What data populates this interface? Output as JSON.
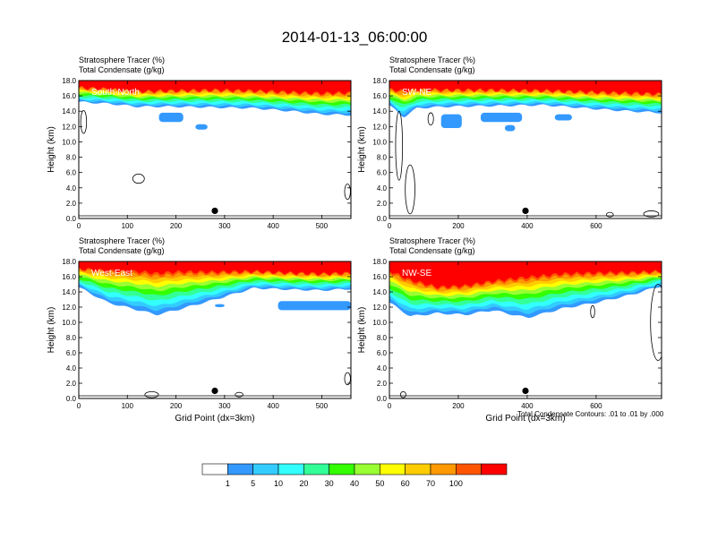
{
  "figure": {
    "title": "2014-01-13_06:00:00",
    "footnote": "Total Condensate Contours: .01 to .01 by .000"
  },
  "colorbar": {
    "colors": [
      "#ffffff",
      "#3399ff",
      "#33ccff",
      "#33ffff",
      "#33ff99",
      "#33ff00",
      "#99ff33",
      "#ffff00",
      "#ffcc00",
      "#ff9900",
      "#ff5500",
      "#ff0000"
    ],
    "labels": [
      "1",
      "5",
      "10",
      "20",
      "30",
      "40",
      "50",
      "60",
      "70",
      "100"
    ]
  },
  "chart_data": [
    {
      "type": "heatmap",
      "panel": "top-left",
      "header_line1": "Stratosphere Tracer   (%)",
      "header_line2": "Total Condensate   (g/kg)",
      "label": "South-North",
      "ylabel": "Height (km)",
      "xlabel": "",
      "xlim": [
        0,
        560
      ],
      "ylim": [
        0,
        18
      ],
      "xticks": [
        0,
        100,
        200,
        300,
        400,
        500
      ],
      "yticks": [
        "0.0",
        "2.0",
        "4.0",
        "6.0",
        "8.0",
        "10.0",
        "12.0",
        "14.0",
        "16.0",
        "18.0"
      ],
      "marker": {
        "x": 280,
        "y": 1.0
      },
      "tracer_bands": {
        "x": [
          0,
          60,
          120,
          200,
          280,
          360,
          440,
          500,
          560
        ],
        "z100": [
          17.2,
          17.0,
          16.7,
          16.8,
          16.9,
          16.8,
          16.6,
          16.5,
          16.6
        ],
        "z1": [
          15.2,
          15.0,
          14.6,
          14.6,
          14.5,
          14.4,
          14.0,
          13.6,
          13.5
        ]
      },
      "patches": [
        {
          "x0": 165,
          "x1": 215,
          "z0": 12.6,
          "z1": 13.8
        },
        {
          "x0": 240,
          "x1": 265,
          "z0": 11.6,
          "z1": 12.3
        }
      ],
      "contours": [
        {
          "cx": 123,
          "cy": 5.2,
          "rx": 12,
          "ry": 0.6
        },
        {
          "cx": 10,
          "cy": 12.6,
          "rx": 6,
          "ry": 1.5
        },
        {
          "cx": 553,
          "cy": 3.5,
          "rx": 6,
          "ry": 1.0
        }
      ]
    },
    {
      "type": "heatmap",
      "panel": "top-right",
      "header_line1": "Stratosphere Tracer   (%)",
      "header_line2": "Total Condensate   (g/kg)",
      "label": "SW-NE",
      "ylabel": "Height (km)",
      "xlabel": "",
      "xlim": [
        0,
        790
      ],
      "ylim": [
        0,
        18
      ],
      "xticks": [
        0,
        200,
        400,
        600
      ],
      "yticks": [
        "0.0",
        "2.0",
        "4.0",
        "6.0",
        "8.0",
        "10.0",
        "12.0",
        "14.0",
        "16.0",
        "18.0"
      ],
      "marker": {
        "x": 395,
        "y": 1.0
      },
      "tracer_bands": {
        "x": [
          0,
          40,
          80,
          160,
          300,
          450,
          600,
          700,
          790
        ],
        "z100": [
          17.0,
          16.8,
          17.0,
          16.9,
          16.9,
          16.8,
          16.6,
          16.5,
          16.4
        ],
        "z1": [
          14.8,
          13.2,
          14.4,
          14.6,
          14.7,
          14.8,
          14.3,
          14.0,
          13.8
        ]
      },
      "patches": [
        {
          "x0": 150,
          "x1": 210,
          "z0": 11.8,
          "z1": 13.6
        },
        {
          "x0": 265,
          "x1": 385,
          "z0": 12.6,
          "z1": 13.8
        },
        {
          "x0": 335,
          "x1": 365,
          "z0": 11.4,
          "z1": 12.2
        },
        {
          "x0": 480,
          "x1": 530,
          "z0": 12.8,
          "z1": 13.6
        }
      ],
      "contours": [
        {
          "cx": 60,
          "cy": 3.8,
          "rx": 14,
          "ry": 3.2
        },
        {
          "cx": 28,
          "cy": 9.5,
          "rx": 10,
          "ry": 4.5
        },
        {
          "cx": 120,
          "cy": 13.0,
          "rx": 8,
          "ry": 0.8
        },
        {
          "cx": 760,
          "cy": 0.6,
          "rx": 22,
          "ry": 0.4
        },
        {
          "cx": 640,
          "cy": 0.5,
          "rx": 10,
          "ry": 0.3
        }
      ]
    },
    {
      "type": "heatmap",
      "panel": "bottom-left",
      "header_line1": "Stratosphere Tracer   (%)",
      "header_line2": "Total Condensate   (g/kg)",
      "label": "West-East",
      "ylabel": "Height (km)",
      "xlabel": "Grid Point (dx=3km)",
      "xlim": [
        0,
        560
      ],
      "ylim": [
        0,
        18
      ],
      "xticks": [
        0,
        100,
        200,
        300,
        400,
        500
      ],
      "yticks": [
        "0.0",
        "2.0",
        "4.0",
        "6.0",
        "8.0",
        "10.0",
        "12.0",
        "14.0",
        "16.0",
        "18.0"
      ],
      "marker": {
        "x": 280,
        "y": 1.0
      },
      "tracer_bands": {
        "x": [
          0,
          60,
          130,
          160,
          200,
          280,
          360,
          440,
          500,
          560
        ],
        "z100": [
          17.2,
          17.0,
          16.9,
          16.7,
          16.9,
          16.8,
          16.8,
          16.6,
          16.5,
          16.6
        ],
        "z1": [
          14.6,
          12.6,
          11.5,
          11.0,
          11.6,
          13.0,
          14.5,
          14.3,
          14.2,
          14.4
        ]
      },
      "patches": [
        {
          "x0": 410,
          "x1": 560,
          "z0": 11.6,
          "z1": 12.8
        },
        {
          "x0": 280,
          "x1": 300,
          "z0": 12.0,
          "z1": 12.4
        }
      ],
      "contours": [
        {
          "cx": 150,
          "cy": 0.5,
          "rx": 14,
          "ry": 0.4
        },
        {
          "cx": 330,
          "cy": 0.5,
          "rx": 8,
          "ry": 0.3
        },
        {
          "cx": 553,
          "cy": 2.6,
          "rx": 6,
          "ry": 0.8
        }
      ]
    },
    {
      "type": "heatmap",
      "panel": "bottom-right",
      "header_line1": "Stratosphere Tracer   (%)",
      "header_line2": "Total Condensate   (g/kg)",
      "label": "NW-SE",
      "ylabel": "Height (km)",
      "xlabel": "Grid Point (dx=3km)",
      "xlim": [
        0,
        790
      ],
      "ylim": [
        0,
        18
      ],
      "xticks": [
        0,
        200,
        400,
        600
      ],
      "yticks": [
        "0.0",
        "2.0",
        "4.0",
        "6.0",
        "8.0",
        "10.0",
        "12.0",
        "14.0",
        "16.0",
        "18.0"
      ],
      "marker": {
        "x": 395,
        "y": 1.0
      },
      "tracer_bands": {
        "x": [
          0,
          60,
          140,
          220,
          300,
          400,
          500,
          600,
          700,
          790
        ],
        "z100": [
          17.0,
          15.8,
          14.8,
          15.0,
          15.6,
          16.2,
          16.6,
          16.7,
          16.7,
          16.8
        ],
        "z1": [
          12.6,
          10.8,
          11.2,
          11.0,
          11.6,
          10.6,
          11.8,
          12.6,
          13.6,
          14.8
        ]
      },
      "patches": [],
      "contours": [
        {
          "cx": 780,
          "cy": 10.0,
          "rx": 22,
          "ry": 5.0
        },
        {
          "cx": 590,
          "cy": 11.4,
          "rx": 6,
          "ry": 0.8
        },
        {
          "cx": 40,
          "cy": 0.5,
          "rx": 8,
          "ry": 0.4
        }
      ]
    }
  ]
}
